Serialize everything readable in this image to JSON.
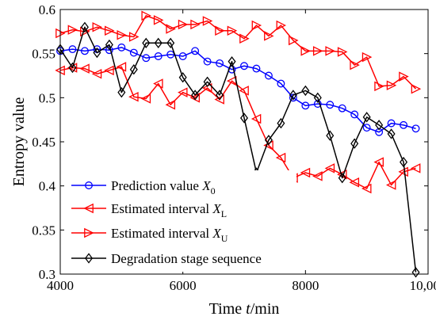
{
  "chart_data": {
    "type": "line",
    "xlabel": "Time t/min",
    "xlabel_parts": {
      "prefix": "Time ",
      "var": "t",
      "suffix": "/min"
    },
    "ylabel": "Entropy value",
    "xlim": [
      4000,
      10000
    ],
    "ylim": [
      0.3,
      0.6
    ],
    "xticks": [
      4000,
      6000,
      8000,
      10000
    ],
    "xtick_labels": [
      "4000",
      "6000",
      "8000",
      "10,000"
    ],
    "yticks": [
      0.3,
      0.35,
      0.4,
      0.45,
      0.5,
      0.55,
      0.6
    ],
    "ytick_labels": [
      "0.3",
      "0.35",
      "0.4",
      "0.45",
      "0.5",
      "0.55",
      "0.6"
    ],
    "grid": false,
    "legend_position": "bottom-left",
    "x": [
      4000,
      4200,
      4400,
      4600,
      4800,
      5000,
      5200,
      5400,
      5600,
      5800,
      6000,
      6200,
      6400,
      6600,
      6800,
      7000,
      7200,
      7400,
      7600,
      7800,
      8000,
      8200,
      8400,
      8600,
      8800,
      9000,
      9200,
      9400,
      9600,
      9800
    ],
    "series": [
      {
        "name": "Prediction value X0",
        "legend_parts": {
          "text": "Prediction value ",
          "var": "X",
          "sub": "0"
        },
        "color": "#0000ff",
        "marker": "circle",
        "values": [
          0.553,
          0.555,
          0.553,
          0.555,
          0.554,
          0.557,
          0.551,
          0.545,
          0.547,
          0.549,
          0.547,
          0.553,
          0.541,
          0.539,
          0.532,
          0.536,
          0.533,
          0.525,
          0.516,
          0.5,
          0.491,
          0.493,
          0.492,
          0.488,
          0.481,
          0.466,
          0.461,
          0.471,
          0.469,
          0.465
        ]
      },
      {
        "name": "Estimated interval XL",
        "legend_parts": {
          "text": "Estimated interval ",
          "var": "X",
          "sub": "L"
        },
        "color": "#ff0000",
        "marker": "triangle-left",
        "values": [
          0.531,
          0.534,
          0.533,
          0.527,
          0.531,
          0.535,
          0.501,
          0.499,
          0.516,
          0.492,
          0.506,
          0.5,
          0.511,
          0.498,
          0.519,
          0.508,
          0.476,
          0.446,
          0.432,
          0.409,
          0.415,
          0.411,
          0.42,
          0.413,
          0.404,
          0.397,
          0.427,
          0.401,
          0.416,
          0.42
        ]
      },
      {
        "name": "Estimated interval XU",
        "legend_parts": {
          "text": "Estimated interval ",
          "var": "X",
          "sub": "U"
        },
        "color": "#ff0000",
        "marker": "triangle-right",
        "values": [
          0.573,
          0.577,
          0.575,
          0.58,
          0.576,
          0.571,
          0.569,
          0.593,
          0.588,
          0.578,
          0.583,
          0.583,
          0.587,
          0.576,
          0.576,
          0.567,
          0.582,
          0.57,
          0.582,
          0.565,
          0.553,
          0.553,
          0.553,
          0.552,
          0.537,
          0.546,
          0.513,
          0.514,
          0.524,
          0.51
        ]
      },
      {
        "name": "Degradation stage sequence",
        "legend_parts": {
          "text": "Degradation stage sequence",
          "var": "",
          "sub": ""
        },
        "color": "#000000",
        "marker": "diamond",
        "values": [
          0.555,
          0.534,
          0.58,
          0.551,
          0.56,
          0.506,
          0.532,
          0.562,
          0.562,
          0.562,
          0.523,
          0.503,
          0.518,
          0.503,
          0.541,
          0.477,
          0.415,
          0.452,
          0.471,
          0.503,
          0.508,
          0.5,
          0.457,
          0.409,
          0.448,
          0.478,
          0.469,
          0.459,
          0.427,
          0.302
        ]
      }
    ]
  }
}
